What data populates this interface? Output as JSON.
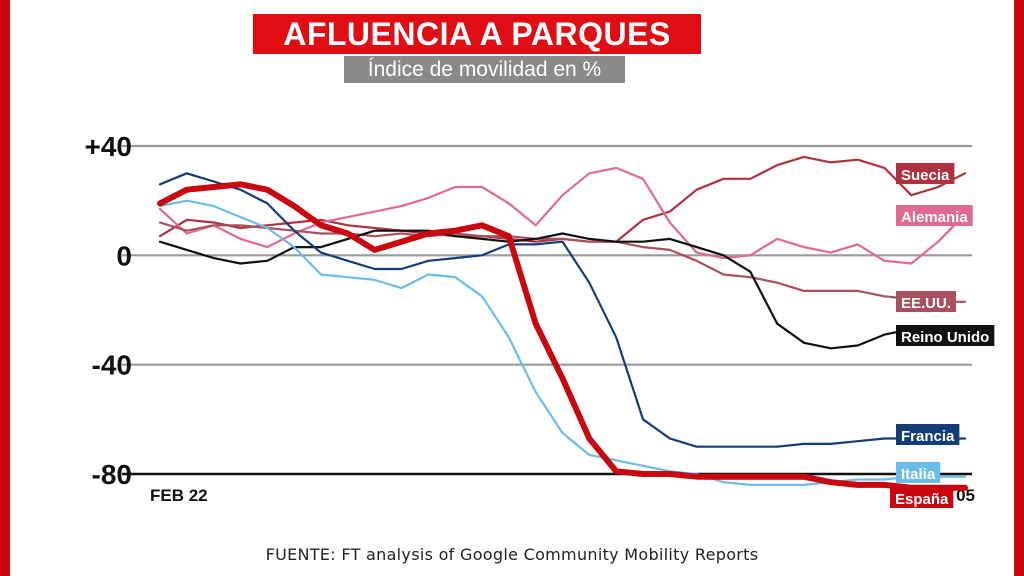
{
  "header": {
    "title": "AFLUENCIA A PARQUES",
    "subtitle": "Índice de movilidad en %"
  },
  "footer": {
    "source": "FUENTE: FT analysis of Google Community Mobility Reports"
  },
  "chart_data": {
    "type": "line",
    "title": "AFLUENCIA A PARQUES",
    "subtitle": "Índice de movilidad en %",
    "xlabel": "",
    "ylabel": "",
    "ylim": [
      -80,
      40
    ],
    "xlim": [
      0,
      30
    ],
    "y_ticks": [
      {
        "value": 40,
        "label": "+40"
      },
      {
        "value": 0,
        "label": "0"
      },
      {
        "value": -40,
        "label": "-40"
      },
      {
        "value": -80,
        "label": "-80"
      }
    ],
    "x_ticks": [
      {
        "value": 0,
        "label": "FEB 22"
      },
      {
        "value": 30,
        "label": "05"
      }
    ],
    "grid": true,
    "legend": "inline labels at line ends",
    "series": [
      {
        "name": "Suecia",
        "color": "#b0313f",
        "width": 2.2,
        "x": [
          0,
          1,
          2,
          3,
          4,
          5,
          6,
          7,
          8,
          9,
          10,
          11,
          12,
          13,
          14,
          15,
          16,
          17,
          18,
          19,
          20,
          21,
          22,
          23,
          24,
          25,
          26,
          27,
          28,
          29,
          30
        ],
        "y": [
          7,
          13,
          12,
          10,
          11,
          12,
          13,
          11,
          10,
          9,
          8,
          7,
          7,
          6,
          5,
          6,
          5,
          5,
          13,
          16,
          24,
          28,
          28,
          33,
          36,
          34,
          35,
          32,
          22,
          25,
          30
        ]
      },
      {
        "name": "Alemania",
        "color": "#e2698f",
        "width": 2.2,
        "x": [
          0,
          1,
          2,
          3,
          4,
          5,
          6,
          7,
          8,
          9,
          10,
          11,
          12,
          13,
          14,
          15,
          16,
          17,
          18,
          19,
          20,
          21,
          22,
          23,
          24,
          25,
          26,
          27,
          28,
          29,
          30
        ],
        "y": [
          17,
          8,
          11,
          6,
          3,
          8,
          12,
          14,
          16,
          18,
          21,
          25,
          25,
          19,
          11,
          22,
          30,
          32,
          28,
          12,
          1,
          -1,
          0,
          6,
          3,
          1,
          4,
          -2,
          -3,
          5,
          15
        ]
      },
      {
        "name": "EE.UU.",
        "color": "#a95060",
        "width": 2.2,
        "x": [
          0,
          1,
          2,
          3,
          4,
          5,
          6,
          7,
          8,
          9,
          10,
          11,
          12,
          13,
          14,
          15,
          16,
          17,
          18,
          19,
          20,
          21,
          22,
          23,
          24,
          25,
          26,
          27,
          28,
          29,
          30
        ],
        "y": [
          12,
          9,
          11,
          11,
          10,
          9,
          8,
          8,
          7,
          8,
          7,
          8,
          7,
          7,
          6,
          6,
          5,
          5,
          3,
          2,
          -2,
          -7,
          -8,
          -10,
          -13,
          -13,
          -13,
          -15,
          -16,
          -17,
          -17
        ]
      },
      {
        "name": "Reino Unido",
        "color": "#111111",
        "width": 2.2,
        "x": [
          0,
          1,
          2,
          3,
          4,
          5,
          6,
          7,
          8,
          9,
          10,
          11,
          12,
          13,
          14,
          15,
          16,
          17,
          18,
          19,
          20,
          21,
          22,
          23,
          24,
          25,
          26,
          27,
          28,
          29,
          30
        ],
        "y": [
          5,
          2,
          -1,
          -3,
          -2,
          3,
          3,
          6,
          9,
          9,
          9,
          7,
          6,
          5,
          6,
          8,
          6,
          5,
          5,
          6,
          3,
          0,
          -6,
          -25,
          -32,
          -34,
          -33,
          -29,
          -27,
          -28,
          -28
        ]
      },
      {
        "name": "Francia",
        "color": "#123d78",
        "width": 2.2,
        "x": [
          0,
          1,
          2,
          3,
          4,
          5,
          6,
          7,
          8,
          9,
          10,
          11,
          12,
          13,
          14,
          15,
          16,
          17,
          18,
          19,
          20,
          21,
          22,
          23,
          24,
          25,
          26,
          27,
          28,
          29,
          30
        ],
        "y": [
          26,
          30,
          27,
          24,
          19,
          9,
          1,
          -2,
          -5,
          -5,
          -2,
          -1,
          0,
          4,
          4,
          5,
          -10,
          -30,
          -60,
          -67,
          -70,
          -70,
          -70,
          -70,
          -69,
          -69,
          -68,
          -67,
          -67,
          -67,
          -67
        ]
      },
      {
        "name": "Italia",
        "color": "#6bbde9",
        "width": 2.2,
        "x": [
          0,
          1,
          2,
          3,
          4,
          5,
          6,
          7,
          8,
          9,
          10,
          11,
          12,
          13,
          14,
          15,
          16,
          17,
          18,
          19,
          20,
          21,
          22,
          23,
          24,
          25,
          26,
          27,
          28,
          29,
          30
        ],
        "y": [
          18,
          20,
          18,
          14,
          10,
          3,
          -7,
          -8,
          -9,
          -12,
          -7,
          -8,
          -15,
          -30,
          -50,
          -65,
          -73,
          -75,
          -77,
          -79,
          -80,
          -83,
          -84,
          -84,
          -84,
          -83,
          -82,
          -82,
          -81,
          -81,
          -81
        ]
      },
      {
        "name": "España",
        "color": "#c8070f",
        "width": 6,
        "x": [
          0,
          1,
          2,
          3,
          4,
          5,
          6,
          7,
          8,
          9,
          10,
          11,
          12,
          13,
          14,
          15,
          16,
          17,
          18,
          19,
          20,
          21,
          22,
          23,
          24,
          25,
          26,
          27,
          28,
          29,
          30
        ],
        "y": [
          19,
          24,
          25,
          26,
          24,
          18,
          11,
          8,
          2,
          5,
          8,
          9,
          11,
          7,
          -25,
          -45,
          -67,
          -79,
          -80,
          -80,
          -81,
          -81,
          -81,
          -81,
          -81,
          -83,
          -84,
          -84,
          -85,
          -85,
          -85
        ]
      }
    ]
  }
}
